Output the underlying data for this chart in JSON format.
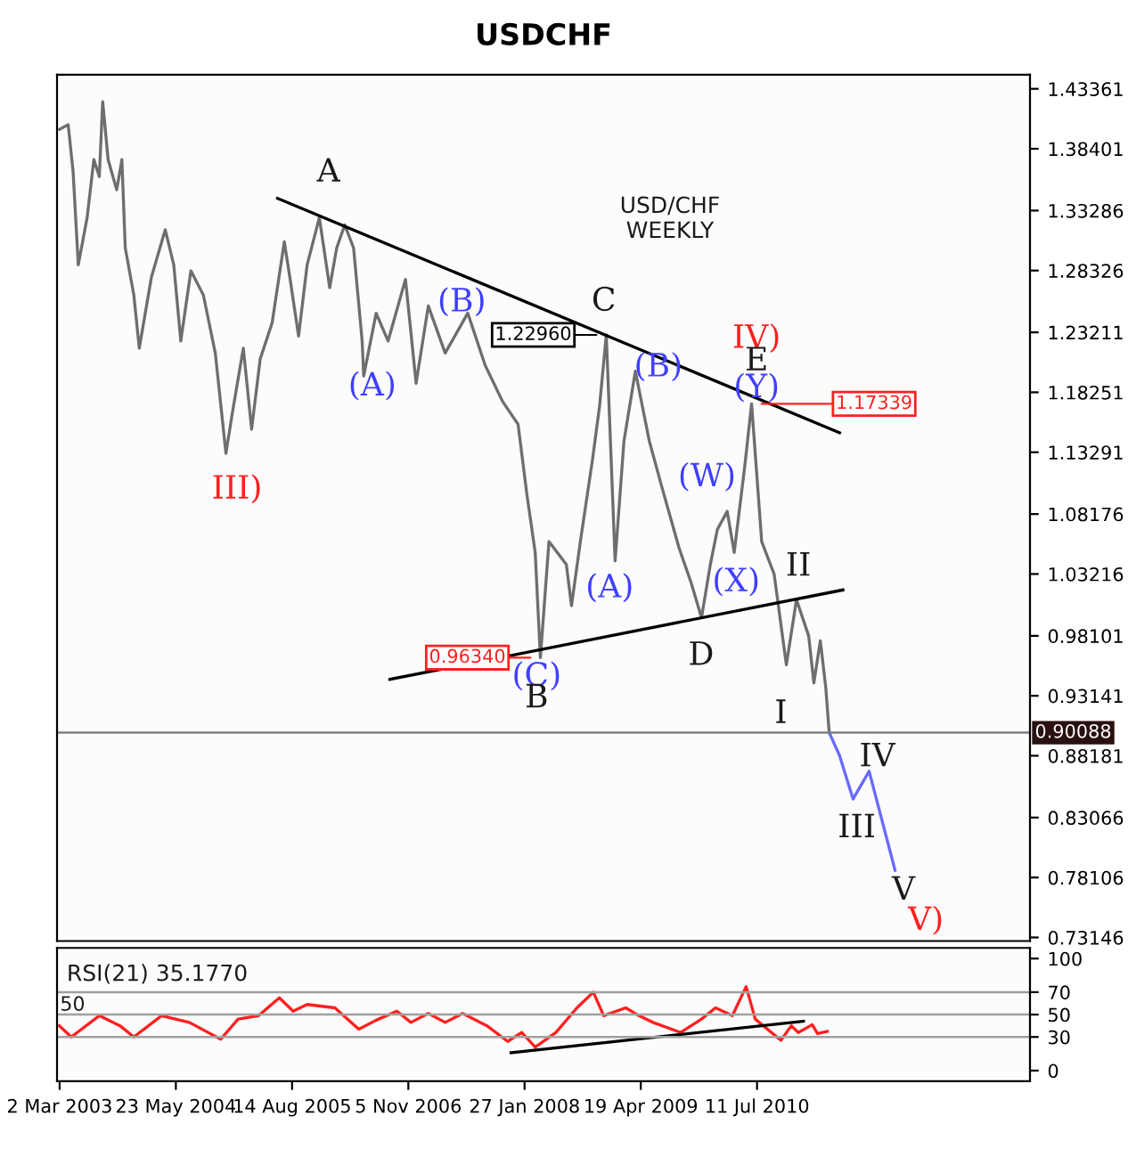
{
  "chart_data": [
    {
      "type": "line",
      "title": "USDCHF",
      "subtitle": "USD/CHF\nWEEKLY",
      "tick_labels": "y",
      "marker": "none",
      "line_style": "solid",
      "xlim": [
        "2003-02-20",
        "2013-05-28"
      ],
      "ylim": [
        0.7285,
        1.4453
      ],
      "yticks": [
        0.73146,
        0.78106,
        0.83066,
        0.88181,
        0.93141,
        0.98101,
        1.03216,
        1.08176,
        1.13291,
        1.18251,
        1.23211,
        1.28326,
        1.33286,
        1.38401,
        1.43361
      ],
      "series": [
        {
          "color": "#6e6e6e",
          "x": [
            "2003-03-02",
            "2003-04-04",
            "2003-04-23",
            "2003-05-13",
            "2003-06-16",
            "2003-07-12",
            "2003-08-02",
            "2003-08-15",
            "2003-09-05",
            "2003-10-08",
            "2003-10-28",
            "2003-11-10",
            "2003-12-13",
            "2004-01-03",
            "2004-02-19",
            "2004-04-12",
            "2004-05-15",
            "2004-06-11",
            "2004-07-20",
            "2004-09-06",
            "2004-10-22",
            "2004-12-02",
            "2004-12-28",
            "2005-02-07",
            "2005-03-11",
            "2005-04-13",
            "2005-05-29",
            "2005-07-15",
            "2005-08-05",
            "2005-09-08",
            "2005-10-11",
            "2005-11-27",
            "2006-01-06",
            "2006-02-02",
            "2006-03-05",
            "2006-04-08",
            "2006-05-11",
            "2006-05-17",
            "2006-07-04",
            "2006-08-19",
            "2006-10-25",
            "2006-12-05",
            "2007-01-21",
            "2007-03-27",
            "2007-06-22",
            "2007-08-28",
            "2007-11-03",
            "2008-01-02",
            "2008-02-05",
            "2008-03-08",
            "2008-03-28",
            "2008-04-30",
            "2008-07-06",
            "2008-07-26",
            "2008-08-29",
            "2008-10-15",
            "2008-11-11",
            "2008-12-07",
            "2009-01-10",
            "2009-02-13",
            "2009-03-29",
            "2009-05-22",
            "2009-07-08",
            "2009-09-13",
            "2009-10-30",
            "2009-12-09",
            "2010-01-12",
            "2010-02-08",
            "2010-03-18",
            "2010-04-14",
            "2010-05-24",
            "2010-06-20",
            "2010-07-29",
            "2010-09-15",
            "2010-11-01",
            "2010-12-10",
            "2011-01-26",
            "2011-02-15",
            "2011-03-12",
            "2011-04-02",
            "2011-04-15"
          ],
          "values": [
            1.4,
            1.404,
            1.365,
            1.288,
            1.327,
            1.375,
            1.361,
            1.423,
            1.375,
            1.35,
            1.375,
            1.302,
            1.263,
            1.219,
            1.278,
            1.317,
            1.288,
            1.225,
            1.283,
            1.263,
            1.215,
            1.132,
            1.167,
            1.219,
            1.152,
            1.21,
            1.24,
            1.307,
            1.278,
            1.229,
            1.288,
            1.327,
            1.269,
            1.302,
            1.321,
            1.302,
            1.225,
            1.196,
            1.248,
            1.225,
            1.276,
            1.19,
            1.254,
            1.215,
            1.248,
            1.205,
            1.175,
            1.156,
            1.098,
            1.05,
            0.963,
            1.059,
            1.04,
            1.006,
            1.059,
            1.127,
            1.171,
            1.23,
            1.043,
            1.142,
            1.2,
            1.142,
            1.105,
            1.054,
            1.025,
            0.996,
            1.04,
            1.069,
            1.084,
            1.05,
            1.12,
            1.173,
            1.059,
            1.032,
            0.957,
            1.011,
            0.981,
            0.942,
            0.977,
            0.938,
            0.901
          ]
        },
        {
          "color": "#000000",
          "x": [
            "2005-06-19",
            "2011-05-25"
          ],
          "values": [
            1.343,
            1.149
          ]
        },
        {
          "color": "#000000",
          "x": [
            "2006-08-26",
            "2011-06-07"
          ],
          "values": [
            0.945,
            1.019
          ]
        },
        {
          "color": "#6a6aff",
          "x": [
            "2011-04-15",
            "2011-05-25",
            "2011-07-16",
            "2011-09-16",
            "2011-12-25"
          ],
          "values": [
            0.901,
            0.882,
            0.846,
            0.869,
            0.787
          ]
        }
      ],
      "ref_lines": [
        {
          "axis": "y",
          "value": 0.90088,
          "label": "0.90088",
          "color": "#808080"
        }
      ],
      "annotations": [
        "A",
        "III)",
        "(A)",
        "(B)",
        "C",
        "(B)",
        "(A)",
        "(C)",
        "B",
        "D",
        "(W)",
        "(X)",
        "IV)",
        "E",
        "(Y)",
        "II",
        "I",
        "IV",
        "III",
        "V",
        "V)",
        {
          "text": "1.22960",
          "x": "2008-12-07",
          "y": 1.23
        },
        {
          "text": "0.96340",
          "x": "2008-03-28",
          "y": 0.963
        },
        {
          "text": "1.17339",
          "x": "2010-06-20",
          "y": 1.173
        }
      ]
    },
    {
      "type": "line",
      "subtitle": "RSI(21) 35.1770",
      "marker": "none",
      "line_style": "solid",
      "xlim": [
        "2003-02-20",
        "2013-05-28"
      ],
      "ylim": [
        -9.5,
        109.5
      ],
      "yticks": [
        0,
        30,
        50,
        70,
        100
      ],
      "xticks": [
        {
          "value": "2003-03-02",
          "label": "2 Mar 2003"
        },
        {
          "value": "2004-05-23",
          "label": "23 May 2004"
        },
        {
          "value": "2005-08-14",
          "label": "14 Aug 2005"
        },
        {
          "value": "2006-11-05",
          "label": "5 Nov 2006"
        },
        {
          "value": "2008-01-27",
          "label": "27 Jan 2008"
        },
        {
          "value": "2009-04-19",
          "label": "19 Apr 2009"
        },
        {
          "value": "2010-07-11",
          "label": "11 Jul 2010"
        }
      ],
      "series": [
        {
          "color": "#ff2020",
          "x": [
            "2003-03-01",
            "2003-04-16",
            "2003-08-02",
            "2003-10-21",
            "2003-12-13",
            "2004-03-29",
            "2004-07-14",
            "2004-11-12",
            "2005-01-18",
            "2005-04-07",
            "2005-06-26",
            "2005-08-18",
            "2005-10-11",
            "2006-01-26",
            "2006-04-28",
            "2006-07-04",
            "2006-09-22",
            "2006-11-15",
            "2007-01-21",
            "2007-03-27",
            "2007-06-02",
            "2007-09-04",
            "2007-11-23",
            "2008-01-16",
            "2008-03-08",
            "2008-05-27",
            "2008-08-16",
            "2008-10-18",
            "2008-11-27",
            "2009-02-20",
            "2009-04-12",
            "2009-06-05",
            "2009-09-20",
            "2009-12-09",
            "2010-02-01",
            "2010-04-07",
            "2010-05-30",
            "2010-07-04",
            "2010-10-11",
            "2010-11-20",
            "2010-12-17",
            "2011-02-09",
            "2011-03-01",
            "2011-04-08"
          ],
          "values": [
            40,
            30,
            49,
            40,
            30,
            49,
            43,
            28,
            46,
            49,
            65,
            53,
            59,
            56,
            37,
            45,
            53,
            43,
            51,
            43,
            51,
            40,
            26,
            34,
            21,
            34,
            56,
            70,
            49,
            56,
            49,
            43,
            34,
            46,
            56,
            49,
            75,
            46,
            27,
            40,
            34,
            41,
            33,
            35
          ]
        },
        {
          "color": "#000000",
          "x": [
            "2007-12-06",
            "2011-01-06"
          ],
          "values": [
            16,
            44
          ]
        }
      ],
      "ref_lines": [
        {
          "axis": "y",
          "value": 70,
          "color": "#a0a0a0"
        },
        {
          "axis": "y",
          "value": 50,
          "color": "#a0a0a0"
        },
        {
          "axis": "y",
          "value": 30,
          "color": "#a0a0a0"
        }
      ],
      "annotations": [
        "50"
      ]
    }
  ]
}
